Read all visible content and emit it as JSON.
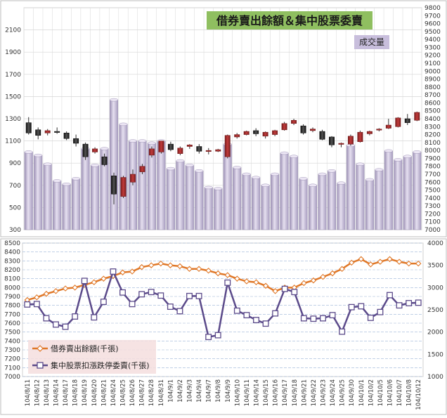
{
  "chart_data": [
    {
      "type": "candlestick+bar",
      "title": "借券賣出餘額＆集中股票委賣",
      "volume_label": "成交量",
      "left_axis": {
        "ticks": [
          300,
          500,
          700,
          900,
          1100,
          1300,
          1500,
          1700,
          1900,
          2100
        ],
        "range": [
          300,
          2300
        ]
      },
      "right_axis": {
        "ticks": [
          7000,
          7100,
          7200,
          7300,
          7400,
          7500,
          7600,
          7700,
          7800,
          7900,
          8000,
          8100,
          8200,
          8300,
          8400,
          8500,
          8600,
          8700,
          8800,
          8900,
          9000,
          9100,
          9200,
          9300,
          9400,
          9500,
          9600,
          9700,
          9800
        ],
        "range": [
          7000,
          9800
        ]
      },
      "volume": [
        1000,
        970,
        890,
        740,
        710,
        760,
        1030,
        880,
        1030,
        1470,
        1250,
        1100,
        1100,
        1080,
        1100,
        850,
        920,
        880,
        830,
        680,
        670,
        1070,
        860,
        800,
        770,
        700,
        800,
        990,
        960,
        760,
        700,
        800,
        830,
        720,
        1060,
        890,
        750,
        840,
        1010,
        930,
        960,
        1000
      ],
      "ohlc": [
        {
          "o": 8350,
          "h": 8420,
          "l": 8200,
          "c": 8220
        },
        {
          "o": 8260,
          "h": 8290,
          "l": 8140,
          "c": 8190
        },
        {
          "o": 8220,
          "h": 8270,
          "l": 8190,
          "c": 8250
        },
        {
          "o": 8240,
          "h": 8290,
          "l": 8210,
          "c": 8230
        },
        {
          "o": 8220,
          "h": 8240,
          "l": 8130,
          "c": 8150
        },
        {
          "o": 8150,
          "h": 8200,
          "l": 8050,
          "c": 8090
        },
        {
          "o": 8080,
          "h": 8100,
          "l": 7880,
          "c": 7920
        },
        {
          "o": 7980,
          "h": 8040,
          "l": 7960,
          "c": 8020
        },
        {
          "o": 7920,
          "h": 7960,
          "l": 7800,
          "c": 7820
        },
        {
          "o": 7680,
          "h": 7720,
          "l": 7320,
          "c": 7450
        },
        {
          "o": 7420,
          "h": 7680,
          "l": 7400,
          "c": 7660
        },
        {
          "o": 7600,
          "h": 7760,
          "l": 7560,
          "c": 7700
        },
        {
          "o": 7730,
          "h": 7830,
          "l": 7700,
          "c": 7800
        },
        {
          "o": 7940,
          "h": 8050,
          "l": 7910,
          "c": 8020
        },
        {
          "o": 7980,
          "h": 8120,
          "l": 7960,
          "c": 8120
        },
        {
          "o": 8080,
          "h": 8110,
          "l": 7990,
          "c": 8010
        },
        {
          "o": 7960,
          "h": 8050,
          "l": 7940,
          "c": 8030
        },
        {
          "o": 8050,
          "h": 8080,
          "l": 8020,
          "c": 8070
        },
        {
          "o": 8050,
          "h": 8080,
          "l": 7960,
          "c": 7990
        },
        {
          "o": 7990,
          "h": 8030,
          "l": 7950,
          "c": 8000
        },
        {
          "o": 7990,
          "h": 8020,
          "l": 7980,
          "c": 8010
        },
        {
          "o": 7920,
          "h": 8200,
          "l": 7900,
          "c": 8190
        },
        {
          "o": 8170,
          "h": 8220,
          "l": 8150,
          "c": 8200
        },
        {
          "o": 8200,
          "h": 8250,
          "l": 8190,
          "c": 8240
        },
        {
          "o": 8250,
          "h": 8280,
          "l": 8180,
          "c": 8210
        },
        {
          "o": 8180,
          "h": 8240,
          "l": 8150,
          "c": 8230
        },
        {
          "o": 8200,
          "h": 8260,
          "l": 8180,
          "c": 8250
        },
        {
          "o": 8260,
          "h": 8360,
          "l": 8250,
          "c": 8340
        },
        {
          "o": 8340,
          "h": 8400,
          "l": 8320,
          "c": 8380
        },
        {
          "o": 8310,
          "h": 8330,
          "l": 8200,
          "c": 8220
        },
        {
          "o": 8250,
          "h": 8290,
          "l": 8230,
          "c": 8270
        },
        {
          "o": 8240,
          "h": 8260,
          "l": 8130,
          "c": 8140
        },
        {
          "o": 8170,
          "h": 8180,
          "l": 8040,
          "c": 8070
        },
        {
          "o": 8080,
          "h": 8100,
          "l": 8040,
          "c": 8090
        },
        {
          "o": 8080,
          "h": 8200,
          "l": 8060,
          "c": 8180
        },
        {
          "o": 8110,
          "h": 8250,
          "l": 8100,
          "c": 8230
        },
        {
          "o": 8210,
          "h": 8250,
          "l": 8190,
          "c": 8240
        },
        {
          "o": 8260,
          "h": 8280,
          "l": 8240,
          "c": 8270
        },
        {
          "o": 8280,
          "h": 8400,
          "l": 8270,
          "c": 8320
        },
        {
          "o": 8300,
          "h": 8420,
          "l": 8290,
          "c": 8410
        },
        {
          "o": 8400,
          "h": 8460,
          "l": 8320,
          "c": 8350
        },
        {
          "o": 8380,
          "h": 8490,
          "l": 8370,
          "c": 8480
        }
      ]
    },
    {
      "type": "line",
      "categories": [
        "104/8/11",
        "104/8/12",
        "104/8/13",
        "104/8/14",
        "104/8/17",
        "104/8/18",
        "104/8/19",
        "104/8/20",
        "104/8/21",
        "104/8/24",
        "104/8/25",
        "104/8/26",
        "104/8/27",
        "104/8/28",
        "104/8/31",
        "104/9/1",
        "104/9/2",
        "104/9/3",
        "104/9/4",
        "104/9/7",
        "104/9/8",
        "104/9/9",
        "104/9/10",
        "104/9/11",
        "104/9/14",
        "104/9/15",
        "104/9/16",
        "104/9/17",
        "104/9/18",
        "104/9/21",
        "104/9/22",
        "104/9/23",
        "104/9/24",
        "104/9/25",
        "104/9/30",
        "104/10/1",
        "104/10/2",
        "104/10/5",
        "104/10/6",
        "104/10/7",
        "104/10/8",
        "104/10/12"
      ],
      "left_axis": {
        "ticks": [
          7000,
          7100,
          7200,
          7300,
          7400,
          7500,
          7600,
          7700,
          7800,
          7900,
          8000,
          8100,
          8200,
          8300,
          8400,
          8500
        ],
        "range": [
          7000,
          8500
        ]
      },
      "right_axis": {
        "ticks": [
          1000,
          1500,
          2000,
          2500,
          3000,
          3500,
          4000
        ],
        "range": [
          1000,
          4000
        ]
      },
      "series": [
        {
          "name": "借券賣出餘額(千張)",
          "color": "#e07828",
          "axis": "left",
          "values": [
            7860,
            7890,
            7930,
            7960,
            7990,
            8000,
            8030,
            8060,
            8100,
            8130,
            8170,
            8180,
            8230,
            8250,
            8270,
            8250,
            8240,
            8210,
            8210,
            8190,
            8160,
            8140,
            8100,
            8070,
            8060,
            8020,
            7960,
            8000,
            8000,
            8050,
            8080,
            8120,
            8160,
            8210,
            8280,
            8320,
            8260,
            8290,
            8320,
            8290,
            8270,
            8270
          ]
        },
        {
          "name": "集中股票扣漲跌停委賣(千張)",
          "color": "#5b4a8a",
          "axis": "right",
          "values": [
            2620,
            2630,
            2310,
            2170,
            2120,
            2350,
            3150,
            2330,
            2680,
            3360,
            2890,
            2630,
            2850,
            2900,
            2820,
            2570,
            2470,
            2810,
            2810,
            1890,
            1930,
            3110,
            2480,
            2380,
            2270,
            2190,
            2420,
            2970,
            2900,
            2310,
            2300,
            2310,
            2380,
            2010,
            2560,
            2580,
            2320,
            2450,
            2830,
            2600,
            2650,
            2660
          ]
        }
      ]
    }
  ]
}
